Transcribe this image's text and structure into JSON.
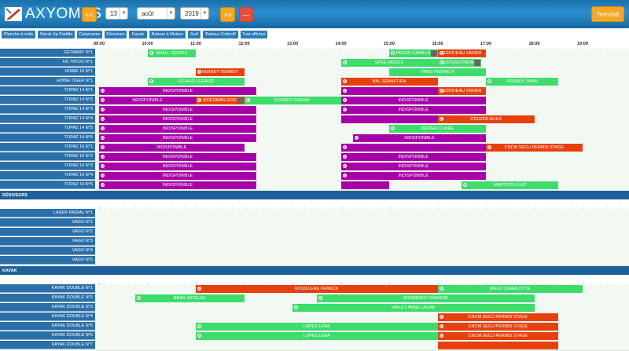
{
  "header": {
    "logo_text": "AXYOMES",
    "prev_label": "<<",
    "next_label": ">>",
    "minus_label": "—",
    "day": "13",
    "month": "août",
    "year": "2019",
    "done_label": "Terminé",
    "colors": {
      "header": "#1f7fc0",
      "orange": "#f5a623",
      "red": "#e74c3c",
      "done": "#f5a623"
    }
  },
  "categories": [
    {
      "label": "Planche à voile"
    },
    {
      "label": "Stand Up Paddle"
    },
    {
      "label": "Catamaran"
    },
    {
      "label": "Dériveurs"
    },
    {
      "label": "Kayak"
    },
    {
      "label": "Bateau à Moteur"
    },
    {
      "label": "Surf"
    },
    {
      "label": "Bateau Collectif"
    },
    {
      "label": "Tout afficher"
    }
  ],
  "hours": [
    "09:00",
    "10:00",
    "11:00",
    "12:00",
    "13:00",
    "14:00",
    "15:00",
    "16:00",
    "17:00",
    "18:00",
    "19:00"
  ],
  "colors": {
    "green": "#3ddc6b",
    "purple": "#a800a8",
    "red": "#e8400c"
  },
  "rows": [
    {
      "type": "row",
      "label": "GETAWAY N°1",
      "bars": [
        {
          "start": 10.0,
          "end": 11.0,
          "color": "green",
          "text": "GRALL CEDRIC",
          "gear": true
        },
        {
          "start": 15.0,
          "end": 16.0,
          "color": "green",
          "text": "PERON CAMILLE",
          "gear": true,
          "icon": true
        },
        {
          "start": 16.0,
          "end": 17.0,
          "color": "red",
          "text": "GODIVEAU XAVIER",
          "gear": true
        }
      ]
    },
    {
      "type": "row",
      "label": "HC TATOO N°1",
      "bars": [
        {
          "start": 14.0,
          "end": 16.0,
          "color": "green",
          "text": "SPEE NICOLE",
          "gear": true
        },
        {
          "start": 16.0,
          "end": 16.9,
          "color": "green",
          "text": "JUSTEAU PIERRE",
          "gear": true,
          "icon": true
        }
      ]
    },
    {
      "type": "row",
      "label": "HOBIE 16 N°1",
      "bars": [
        {
          "start": 11.0,
          "end": 12.0,
          "color": "red",
          "text": "VERREY VERREY",
          "gear": true
        },
        {
          "start": 15.0,
          "end": 17.0,
          "color": "green",
          "text": "FARG PIERRE A",
          "gear": false
        }
      ]
    },
    {
      "type": "row",
      "label": "HOBIE TIGER N°1",
      "bars": [
        {
          "start": 10.0,
          "end": 12.0,
          "color": "green",
          "text": "LEGAUD LEGAUD",
          "gear": true
        },
        {
          "start": 14.0,
          "end": 16.0,
          "color": "red",
          "text": "NAL SEBASTIEN",
          "gear": true
        },
        {
          "start": 17.0,
          "end": 18.5,
          "color": "green",
          "text": "PENNDU YANN",
          "gear": true
        }
      ]
    },
    {
      "type": "row",
      "label": "TOPAZ 14 N°1",
      "bars": [
        {
          "start": 9.0,
          "end": 12.25,
          "color": "purple",
          "text": "INDISPONIBLE",
          "gear": true
        },
        {
          "start": 14.0,
          "end": 16.0,
          "color": "purple",
          "text": "",
          "gear": true
        },
        {
          "start": 16.0,
          "end": 17.0,
          "color": "red",
          "text": "GODIVEAU XAVIER",
          "gear": true
        }
      ]
    },
    {
      "type": "row",
      "label": "TOPAZ 14 N°2",
      "bars": [
        {
          "start": 9.0,
          "end": 11.0,
          "color": "purple",
          "text": "INDISPONIBLE",
          "gear": true
        },
        {
          "start": 11.0,
          "end": 12.0,
          "color": "red",
          "text": "MOERMAN ERIC",
          "gear": true,
          "icon": true
        },
        {
          "start": 12.0,
          "end": 14.0,
          "color": "green",
          "text": "POIRIER GURVAL",
          "gear": true
        },
        {
          "start": 14.0,
          "end": 17.0,
          "color": "purple",
          "text": "INDISPONIBLE",
          "gear": true
        }
      ]
    },
    {
      "type": "row",
      "label": "TOPAZ 14 N°3",
      "bars": [
        {
          "start": 9.0,
          "end": 12.25,
          "color": "purple",
          "text": "INDISPONIBLE",
          "gear": true
        },
        {
          "start": 14.0,
          "end": 17.0,
          "color": "purple",
          "text": "INDISPONIBLE",
          "gear": true
        }
      ]
    },
    {
      "type": "row",
      "label": "TOPAZ 14 N°4",
      "bars": [
        {
          "start": 9.0,
          "end": 12.25,
          "color": "purple",
          "text": "INDISPONIBLE",
          "gear": true
        },
        {
          "start": 14.0,
          "end": 16.0,
          "color": "purple",
          "text": "",
          "gear": false
        },
        {
          "start": 16.0,
          "end": 18.0,
          "color": "red",
          "text": "STEIZER ALIKA",
          "gear": true
        }
      ]
    },
    {
      "type": "row",
      "label": "TOPAZ 14 N°5",
      "bars": [
        {
          "start": 9.0,
          "end": 12.25,
          "color": "purple",
          "text": "INDISPONIBLE",
          "gear": true
        },
        {
          "start": 15.0,
          "end": 17.0,
          "color": "green",
          "text": "WEBER CLAIRE",
          "gear": true
        }
      ]
    },
    {
      "type": "row",
      "label": "TOPAZ 14 N°6",
      "bars": [
        {
          "start": 9.0,
          "end": 12.25,
          "color": "purple",
          "text": "INDISPONIBLE",
          "gear": true
        },
        {
          "start": 14.25,
          "end": 17.0,
          "color": "purple",
          "text": "INDISPONIBLE",
          "gear": true
        }
      ]
    },
    {
      "type": "row",
      "label": "TOPAZ 16 N°1",
      "bars": [
        {
          "start": 9.0,
          "end": 12.0,
          "color": "purple",
          "text": "INDISPONIBLE",
          "gear": true
        },
        {
          "start": 14.0,
          "end": 17.0,
          "color": "purple",
          "text": "",
          "gear": true
        },
        {
          "start": 17.0,
          "end": 19.0,
          "color": "red",
          "text": "CNCM SECU PERMIS STAGE",
          "gear": true
        }
      ]
    },
    {
      "type": "row",
      "label": "TOPAZ 16 N°2",
      "bars": [
        {
          "start": 9.0,
          "end": 12.25,
          "color": "purple",
          "text": "INDISPONIBLE",
          "gear": true
        },
        {
          "start": 14.0,
          "end": 17.0,
          "color": "purple",
          "text": "INDISPONIBLE",
          "gear": true
        }
      ]
    },
    {
      "type": "row",
      "label": "TOPAZ 16 N°3",
      "bars": [
        {
          "start": 9.0,
          "end": 12.25,
          "color": "purple",
          "text": "INDISPONIBLE",
          "gear": true
        },
        {
          "start": 14.0,
          "end": 17.0,
          "color": "purple",
          "text": "INDISPONIBLE",
          "gear": true
        }
      ]
    },
    {
      "type": "row",
      "label": "TOPAZ 16 N°4",
      "bars": [
        {
          "start": 9.0,
          "end": 12.25,
          "color": "purple",
          "text": "INDISPONIBLE",
          "gear": true
        },
        {
          "start": 14.0,
          "end": 17.0,
          "color": "purple",
          "text": "INDISPONIBLE",
          "gear": true
        }
      ]
    },
    {
      "type": "row",
      "label": "TOPAZ 16 N°5",
      "bars": [
        {
          "start": 9.0,
          "end": 12.25,
          "color": "purple",
          "text": "INDISPONIBLE",
          "gear": true
        },
        {
          "start": 14.0,
          "end": 15.0,
          "color": "purple",
          "text": "",
          "gear": false
        },
        {
          "start": 16.5,
          "end": 18.5,
          "color": "green",
          "text": "MARTICOU LUC",
          "gear": true
        }
      ]
    },
    {
      "type": "section",
      "label": "DÉRIVEURS"
    },
    {
      "type": "row",
      "label": "LASER RADIAL N°1",
      "bars": []
    },
    {
      "type": "row",
      "label": "VAGO N°1",
      "bars": []
    },
    {
      "type": "row",
      "label": "VAGO N°2",
      "bars": []
    },
    {
      "type": "row",
      "label": "VAGO N°3",
      "bars": []
    },
    {
      "type": "row",
      "label": "VAGO N°4",
      "bars": []
    },
    {
      "type": "row",
      "label": "VAGO N°5",
      "bars": []
    },
    {
      "type": "section",
      "label": "KAYAK"
    },
    {
      "type": "row",
      "label": "KAYAK DOUBLE N°1",
      "bars": [
        {
          "start": 11.0,
          "end": 16.0,
          "color": "red",
          "text": "ROUILLERE FRANCK",
          "gear": true
        },
        {
          "start": 16.0,
          "end": 19.0,
          "color": "green",
          "text": "RIEUX CHARLOTTE",
          "gear": true
        }
      ]
    },
    {
      "type": "row",
      "label": "KAYAK DOUBLE N°2",
      "bars": [
        {
          "start": 9.75,
          "end": 12.0,
          "color": "green",
          "text": "BRAS NICOLAS",
          "gear": true
        },
        {
          "start": 13.5,
          "end": 18.0,
          "color": "green",
          "text": "ROHRBACH SHANON",
          "gear": true
        }
      ]
    },
    {
      "type": "row",
      "label": "KAYAK DOUBLE N°3",
      "bars": [
        {
          "start": 13.0,
          "end": 18.0,
          "color": "green",
          "text": "VIALET ANNE LAURE",
          "gear": true
        }
      ]
    },
    {
      "type": "row",
      "label": "KAYAK DOUBLE N°4",
      "bars": [
        {
          "start": 16.0,
          "end": 18.5,
          "color": "red",
          "text": "CNCM SECU PERMIS STAGE",
          "gear": true
        }
      ]
    },
    {
      "type": "row",
      "label": "KAYAK DOUBLE N°5",
      "bars": [
        {
          "start": 11.0,
          "end": 16.0,
          "color": "green",
          "text": "LOPEZ LENA",
          "gear": true
        },
        {
          "start": 16.0,
          "end": 18.5,
          "color": "red",
          "text": "CNCM SECU PERMIS STAGE",
          "gear": true
        }
      ]
    },
    {
      "type": "row",
      "label": "KAYAK DOUBLE N°6",
      "bars": [
        {
          "start": 11.0,
          "end": 16.0,
          "color": "green",
          "text": "LOPEZ LENA",
          "gear": true
        },
        {
          "start": 16.0,
          "end": 18.5,
          "color": "red",
          "text": "CNCM SECU PERMIS STAGE",
          "gear": true
        }
      ]
    },
    {
      "type": "row",
      "label": "KAYAK DOUBLE N°7",
      "bars": [
        {
          "start": 16.0,
          "end": 18.5,
          "color": "red",
          "text": "",
          "gear": false
        }
      ]
    }
  ]
}
